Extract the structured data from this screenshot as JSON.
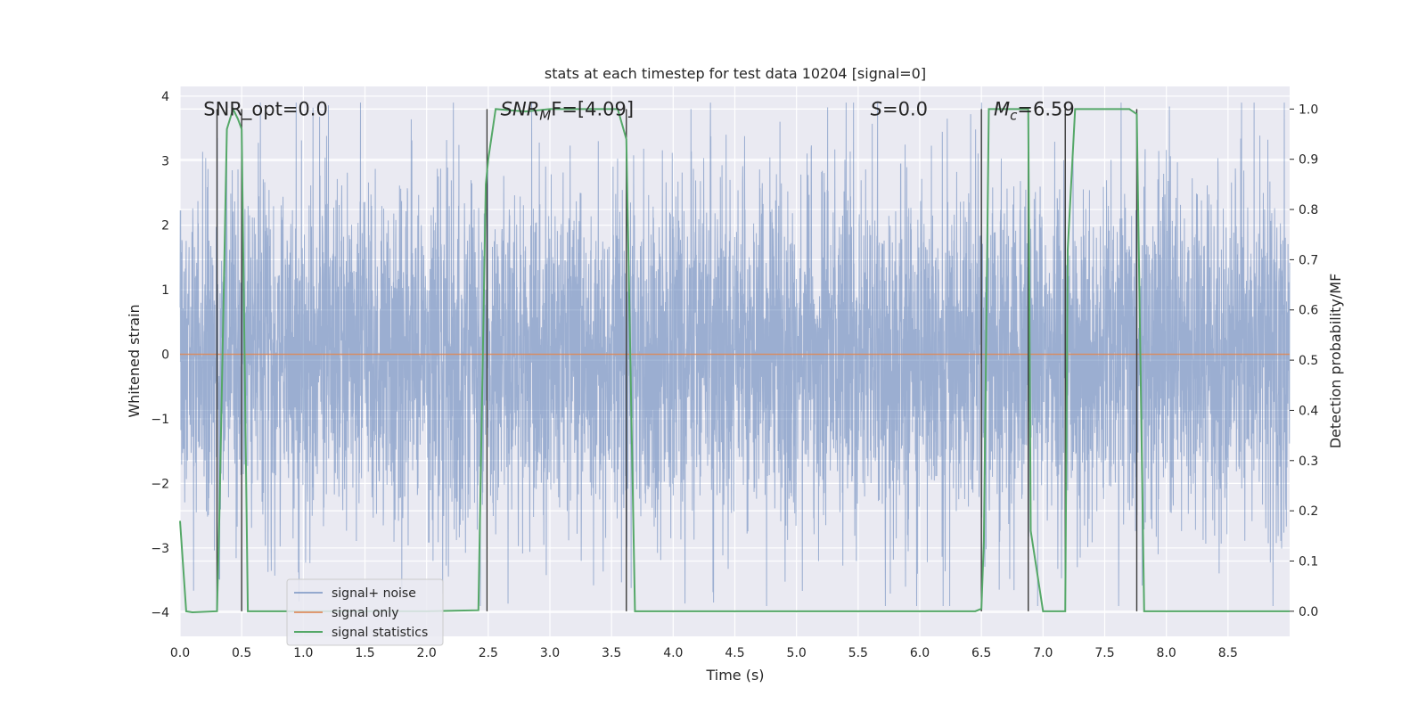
{
  "chart_data": {
    "type": "line",
    "title": "stats at each timestep for test data 10204 [signal=0]",
    "xlabel": "Time (s)",
    "ylabel_left": "Whitened strain",
    "ylabel_right": "Detection probability/MF",
    "xlim": [
      0.0,
      9.0
    ],
    "ylim_left": [
      -4.37,
      4.15
    ],
    "ylim_right": [
      -0.05,
      1.045
    ],
    "x_ticks": [
      "0.0",
      "0.5",
      "1.0",
      "1.5",
      "2.0",
      "2.5",
      "3.0",
      "3.5",
      "4.0",
      "4.5",
      "5.0",
      "5.5",
      "6.0",
      "6.5",
      "7.0",
      "7.5",
      "8.0",
      "8.5"
    ],
    "y_ticks_left": [
      "−4",
      "−3",
      "−2",
      "−1",
      "0",
      "1",
      "2",
      "3",
      "4"
    ],
    "y_ticks_right": [
      "0.0",
      "0.1",
      "0.2",
      "0.3",
      "0.4",
      "0.5",
      "0.6",
      "0.7",
      "0.8",
      "0.9",
      "1.0"
    ],
    "grid": true,
    "legend_position": "lower-left",
    "annotations": [
      {
        "text": "SNR_opt=0.0",
        "x": 0.19,
        "y": 3.8
      },
      {
        "base": "SNR",
        "sub": "M",
        "rest": "F=[4.09]",
        "x": 2.6,
        "y": 3.8
      },
      {
        "base": "S",
        "rest": "=0.0",
        "x": 5.6,
        "y": 3.8
      },
      {
        "base": "M",
        "sub": "c",
        "rest": "=6.59",
        "x": 6.6,
        "y": 3.8
      }
    ],
    "vertical_lines": [
      0.3,
      0.5,
      2.49,
      3.62,
      6.5,
      6.88,
      7.18,
      7.76
    ],
    "series": [
      {
        "name": "signal+ noise",
        "color": "#4c72b0",
        "axis": "left",
        "amplitude": 1.35,
        "peak_high": 3.9,
        "peak_low": -3.9
      },
      {
        "name": "signal only",
        "color": "#dd8452",
        "axis": "left",
        "values_constant": 0.0
      },
      {
        "name": "signal statistics",
        "color": "#55a868",
        "axis": "right",
        "x": [
          0.0,
          0.05,
          0.1,
          0.3,
          0.32,
          0.38,
          0.43,
          0.47,
          0.5,
          0.55,
          1.0,
          2.0,
          2.42,
          2.48,
          2.5,
          2.56,
          2.8,
          3.0,
          3.45,
          3.55,
          3.62,
          3.69,
          4.0,
          5.0,
          6.0,
          6.45,
          6.5,
          6.52,
          6.56,
          6.88,
          6.9,
          7.0,
          7.18,
          7.2,
          7.26,
          7.7,
          7.76,
          7.82,
          8.0,
          9.0
        ],
        "y": [
          0.18,
          0.0,
          -0.002,
          0.0,
          0.2,
          0.96,
          1.0,
          0.98,
          0.96,
          0.0,
          0.0,
          0.0,
          0.002,
          0.85,
          0.9,
          1.0,
          0.995,
          1.0,
          1.0,
          1.0,
          0.94,
          0.0,
          0.0,
          0.0,
          0.0,
          0.0,
          0.005,
          0.14,
          1.0,
          1.0,
          0.16,
          0.0,
          0.0,
          0.72,
          1.0,
          1.0,
          0.99,
          0.0,
          0.0,
          0.0
        ]
      }
    ]
  }
}
